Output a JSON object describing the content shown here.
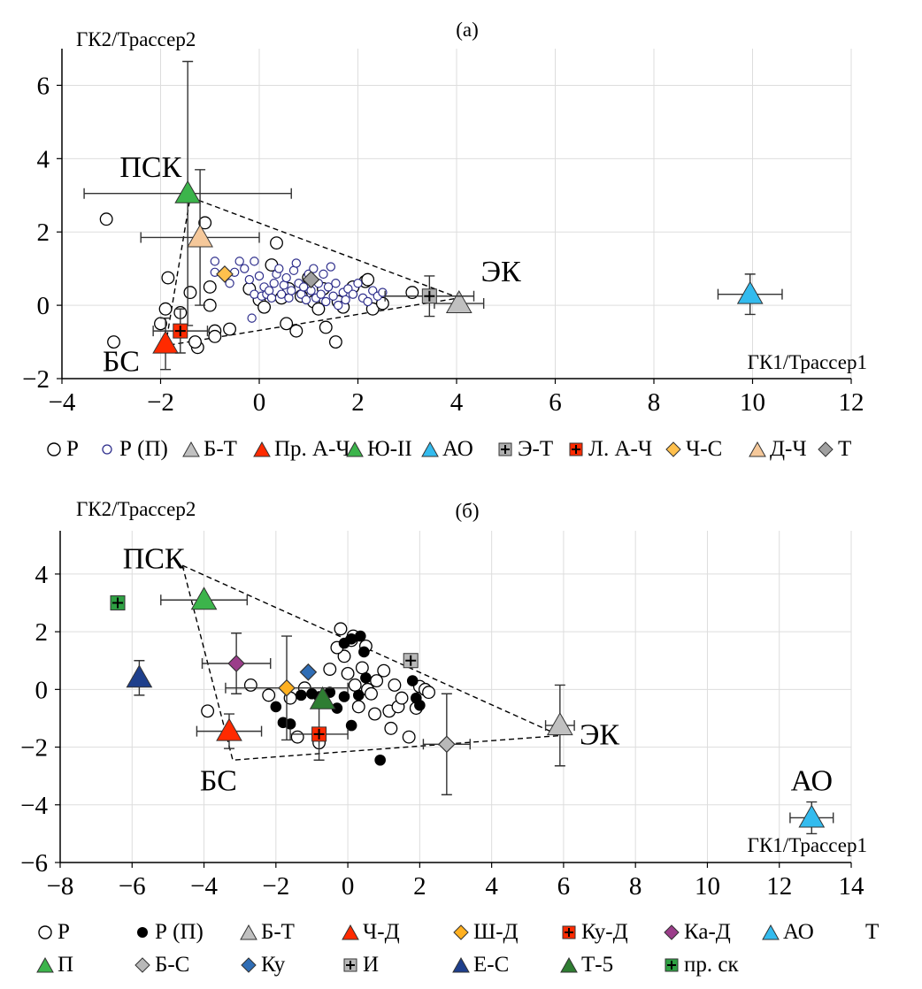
{
  "chart_data": [
    {
      "type": "scatter",
      "panel_label": "(a)",
      "xlabel": "ГК1/Трассер1",
      "ylabel": "ГК2/Трассер2",
      "xlim": [
        -4,
        12
      ],
      "ylim": [
        -2,
        7
      ],
      "x_ticks": [
        -4,
        -2,
        0,
        2,
        4,
        6,
        8,
        10,
        12
      ],
      "y_ticks": [
        -2,
        0,
        2,
        4,
        6
      ],
      "grid": true,
      "annotations": [
        {
          "text": "ПСК",
          "x": -2.2,
          "y": 3.5
        },
        {
          "text": "ЭК",
          "x": 4.9,
          "y": 0.65
        },
        {
          "text": "БС",
          "x": -2.8,
          "y": -1.8
        }
      ],
      "mixing_triangle": [
        [
          -1.4,
          2.95
        ],
        [
          4.05,
          0.2
        ],
        [
          -1.9,
          -1.1
        ]
      ],
      "series": [
        {
          "name": "Р",
          "marker": "circle-open",
          "color": "#000000",
          "points": [
            [
              -3.1,
              2.35
            ],
            [
              -1.85,
              0.75
            ],
            [
              -1.4,
              0.35
            ],
            [
              -1.1,
              2.25
            ],
            [
              -1.0,
              0.5
            ],
            [
              -1.0,
              0.0
            ],
            [
              -0.9,
              -0.7
            ],
            [
              -0.9,
              -0.85
            ],
            [
              -1.25,
              -1.15
            ],
            [
              -1.3,
              -1.0
            ],
            [
              -1.6,
              -0.2
            ],
            [
              -1.9,
              -0.1
            ],
            [
              -2.0,
              -0.5
            ],
            [
              -2.95,
              -1.0
            ],
            [
              -0.6,
              -0.65
            ],
            [
              -0.2,
              0.45
            ],
            [
              0.0,
              0.15
            ],
            [
              0.1,
              -0.05
            ],
            [
              0.25,
              1.1
            ],
            [
              0.35,
              1.7
            ],
            [
              0.45,
              0.2
            ],
            [
              0.55,
              -0.5
            ],
            [
              0.6,
              0.45
            ],
            [
              0.75,
              -0.7
            ],
            [
              0.85,
              0.25
            ],
            [
              1.0,
              0.75
            ],
            [
              1.1,
              0.1
            ],
            [
              1.2,
              -0.1
            ],
            [
              1.3,
              0.45
            ],
            [
              1.35,
              -0.6
            ],
            [
              1.55,
              -1.0
            ],
            [
              1.6,
              0.1
            ],
            [
              1.7,
              -0.05
            ],
            [
              1.9,
              0.5
            ],
            [
              2.15,
              0.65
            ],
            [
              2.2,
              0.7
            ],
            [
              2.3,
              -0.1
            ],
            [
              2.5,
              0.05
            ],
            [
              3.1,
              0.35
            ]
          ]
        },
        {
          "name": "Р (П)",
          "marker": "circle-open-small",
          "color": "#2e2e8c",
          "points": [
            [
              -0.9,
              1.2
            ],
            [
              -0.9,
              0.9
            ],
            [
              -0.6,
              0.6
            ],
            [
              -0.5,
              0.9
            ],
            [
              -0.4,
              1.2
            ],
            [
              -0.3,
              1.0
            ],
            [
              -0.2,
              0.7
            ],
            [
              -0.1,
              1.2
            ],
            [
              -0.1,
              0.3
            ],
            [
              0.0,
              0.8
            ],
            [
              0.05,
              0.25
            ],
            [
              0.1,
              0.5
            ],
            [
              0.15,
              0.3
            ],
            [
              0.2,
              0.4
            ],
            [
              0.25,
              0.2
            ],
            [
              0.3,
              0.6
            ],
            [
              0.35,
              0.85
            ],
            [
              0.4,
              1.0
            ],
            [
              0.45,
              0.3
            ],
            [
              0.5,
              0.55
            ],
            [
              0.55,
              0.75
            ],
            [
              0.6,
              0.2
            ],
            [
              0.65,
              0.4
            ],
            [
              0.7,
              0.95
            ],
            [
              0.75,
              1.15
            ],
            [
              0.8,
              0.6
            ],
            [
              0.85,
              0.3
            ],
            [
              0.9,
              0.5
            ],
            [
              0.95,
              0.15
            ],
            [
              1.0,
              0.85
            ],
            [
              1.05,
              0.4
            ],
            [
              1.1,
              1.0
            ],
            [
              1.15,
              0.2
            ],
            [
              1.2,
              0.6
            ],
            [
              1.25,
              0.3
            ],
            [
              1.3,
              0.85
            ],
            [
              1.35,
              0.1
            ],
            [
              1.4,
              0.5
            ],
            [
              1.45,
              1.05
            ],
            [
              1.5,
              0.25
            ],
            [
              1.55,
              0.6
            ],
            [
              1.6,
              0.0
            ],
            [
              1.7,
              0.35
            ],
            [
              1.75,
              0.15
            ],
            [
              1.8,
              0.45
            ],
            [
              1.9,
              0.3
            ],
            [
              2.0,
              0.6
            ],
            [
              2.1,
              0.2
            ],
            [
              2.2,
              0.1
            ],
            [
              2.3,
              0.4
            ],
            [
              2.4,
              0.25
            ],
            [
              2.5,
              0.35
            ],
            [
              -0.15,
              -0.35
            ]
          ]
        },
        {
          "name": "Б-Т",
          "marker": "triangle",
          "color": "#c0c0c0",
          "points": [
            [
              4.05,
              0.05
            ]
          ],
          "xerr": 0.5,
          "yerr": 0
        },
        {
          "name": "Пр. А-Ч",
          "marker": "triangle",
          "color": "#ff2a00",
          "points": [
            [
              -1.9,
              -1.05
            ]
          ],
          "xerr": 0,
          "yerr": 0.7
        },
        {
          "name": "Ю-II",
          "marker": "triangle",
          "color": "#3cb44b",
          "points": [
            [
              -1.45,
              3.05
            ]
          ],
          "xerr": 2.1,
          "yerr": 3.6
        },
        {
          "name": "АО",
          "marker": "triangle",
          "color": "#33bbee",
          "points": [
            [
              9.95,
              0.3
            ]
          ],
          "xerr": 0.65,
          "yerr": 0.55
        },
        {
          "name": "Э-Т",
          "marker": "square-plus",
          "color": "#b0b0b0",
          "points": [
            [
              3.45,
              0.25
            ]
          ],
          "xerr": 0.9,
          "yerr": 0.55
        },
        {
          "name": "Л. А-Ч",
          "marker": "square-plus",
          "color": "#ff2a00",
          "points": [
            [
              -1.6,
              -0.7
            ]
          ],
          "xerr": 0.55,
          "yerr": 0.6
        },
        {
          "name": "Ч-С",
          "marker": "diamond",
          "color": "#ffc04d",
          "points": [
            [
              -0.7,
              0.85
            ]
          ],
          "xerr": 0,
          "yerr": 0
        },
        {
          "name": "Д-Ч",
          "marker": "triangle",
          "color": "#f5c89a",
          "points": [
            [
              -1.2,
              1.85
            ]
          ],
          "xerr": 1.2,
          "yerr": 1.85
        },
        {
          "name": "Т",
          "marker": "diamond",
          "color": "#a0a0a0",
          "points": [
            [
              1.05,
              0.7
            ]
          ],
          "xerr": 0,
          "yerr": 0
        }
      ]
    },
    {
      "type": "scatter",
      "panel_label": "(б)",
      "xlabel": "ГК1/Трассер1",
      "ylabel": "ГК2/Трассер2",
      "xlim": [
        -8,
        14
      ],
      "ylim": [
        -6,
        5.5
      ],
      "x_ticks": [
        -8,
        -6,
        -4,
        -2,
        0,
        2,
        4,
        6,
        8,
        10,
        12,
        14
      ],
      "y_ticks": [
        -6,
        -4,
        -2,
        0,
        2,
        4
      ],
      "grid": true,
      "annotations": [
        {
          "text": "ПСК",
          "x": -5.4,
          "y": 4.2
        },
        {
          "text": "ЭК",
          "x": 7.0,
          "y": -1.9
        },
        {
          "text": "БС",
          "x": -3.6,
          "y": -3.5
        },
        {
          "text": "АО",
          "x": 12.9,
          "y": -3.5
        }
      ],
      "mixing_triangle": [
        [
          -4.6,
          4.3
        ],
        [
          5.9,
          -1.6
        ],
        [
          -3.2,
          -2.45
        ]
      ],
      "series": [
        {
          "name": "Р",
          "marker": "circle-open",
          "color": "#000000",
          "points": [
            [
              -3.9,
              -0.75
            ],
            [
              -2.7,
              0.15
            ],
            [
              -2.2,
              -0.2
            ],
            [
              -1.6,
              -0.3
            ],
            [
              -1.4,
              -1.65
            ],
            [
              -1.2,
              0.05
            ],
            [
              -0.8,
              -1.85
            ],
            [
              -0.5,
              0.7
            ],
            [
              -0.2,
              2.1
            ],
            [
              0.0,
              0.55
            ],
            [
              0.1,
              1.7
            ],
            [
              0.15,
              1.85
            ],
            [
              0.2,
              0.15
            ],
            [
              -0.1,
              1.15
            ],
            [
              -0.3,
              1.45
            ],
            [
              0.3,
              -0.6
            ],
            [
              0.4,
              0.75
            ],
            [
              0.5,
              1.5
            ],
            [
              0.55,
              0.0
            ],
            [
              0.65,
              -0.15
            ],
            [
              0.75,
              -0.85
            ],
            [
              0.8,
              0.3
            ],
            [
              1.0,
              0.65
            ],
            [
              1.15,
              -0.75
            ],
            [
              1.2,
              -1.35
            ],
            [
              1.3,
              0.15
            ],
            [
              1.4,
              -0.6
            ],
            [
              1.5,
              -0.3
            ],
            [
              1.7,
              -1.65
            ],
            [
              1.9,
              -0.65
            ],
            [
              2.0,
              0.1
            ],
            [
              2.15,
              0.0
            ],
            [
              2.25,
              -0.1
            ]
          ]
        },
        {
          "name": "Р (П)",
          "marker": "circle-filled",
          "color": "#000000",
          "points": [
            [
              -2.0,
              -0.6
            ],
            [
              -1.8,
              -1.15
            ],
            [
              -1.6,
              -1.2
            ],
            [
              -1.3,
              -0.2
            ],
            [
              -1.0,
              -0.15
            ],
            [
              -0.8,
              -0.25
            ],
            [
              -0.5,
              -0.1
            ],
            [
              -0.3,
              -0.65
            ],
            [
              -0.1,
              1.6
            ],
            [
              0.1,
              1.75
            ],
            [
              0.35,
              1.85
            ],
            [
              0.45,
              1.3
            ],
            [
              0.5,
              0.4
            ],
            [
              0.3,
              -0.2
            ],
            [
              0.1,
              -1.25
            ],
            [
              -0.1,
              -0.25
            ],
            [
              0.9,
              -2.45
            ],
            [
              1.8,
              0.3
            ],
            [
              1.9,
              -0.3
            ],
            [
              2.0,
              -0.55
            ]
          ]
        },
        {
          "name": "Б-Т",
          "marker": "triangle",
          "color": "#c0c0c0",
          "points": [
            [
              5.9,
              -1.25
            ]
          ],
          "xerr": 0.4,
          "yerr": 1.4
        },
        {
          "name": "Ч-Д",
          "marker": "triangle",
          "color": "#ff2a00",
          "points": [
            [
              -3.3,
              -1.45
            ]
          ],
          "xerr": 0.9,
          "yerr": 0.6
        },
        {
          "name": "Ш-Д",
          "marker": "diamond",
          "color": "#ffb020",
          "points": [
            [
              -1.7,
              0.05
            ]
          ],
          "xerr": 1.7,
          "yerr": 1.8
        },
        {
          "name": "Ку-Д",
          "marker": "square-plus",
          "color": "#ff2a00",
          "points": [
            [
              -0.8,
              -1.55
            ]
          ],
          "xerr": 0.8,
          "yerr": 0.9
        },
        {
          "name": "Ка-Д",
          "marker": "diamond",
          "color": "#9b3d8a",
          "points": [
            [
              -3.1,
              0.9
            ]
          ],
          "xerr": 0.95,
          "yerr": 1.05
        },
        {
          "name": "АО",
          "marker": "triangle",
          "color": "#33bbee",
          "points": [
            [
              12.9,
              -4.45
            ]
          ],
          "xerr": 0.6,
          "yerr": 0.55
        },
        {
          "name": "Т",
          "marker": "none",
          "color": "#000000",
          "points": []
        },
        {
          "name": "П",
          "marker": "triangle",
          "color": "#3cb44b",
          "points": [
            [
              -4.0,
              3.1
            ]
          ],
          "xerr": 1.2,
          "yerr": 0
        },
        {
          "name": "Б-С",
          "marker": "diamond",
          "color": "#b8b8b8",
          "points": [
            [
              2.75,
              -1.9
            ]
          ],
          "xerr": 0.65,
          "yerr": 1.75
        },
        {
          "name": "Ку",
          "marker": "diamond",
          "color": "#2f6db5",
          "points": [
            [
              -1.1,
              0.6
            ]
          ],
          "xerr": 0,
          "yerr": 0
        },
        {
          "name": "И",
          "marker": "square-plus",
          "color": "#b8b8b8",
          "points": [
            [
              1.75,
              1.0
            ]
          ],
          "xerr": 0,
          "yerr": 0
        },
        {
          "name": "Е-С",
          "marker": "triangle",
          "color": "#1e3f8c",
          "points": [
            [
              -5.8,
              0.4
            ]
          ],
          "xerr": 0,
          "yerr": 0.6
        },
        {
          "name": "Т-5",
          "marker": "triangle",
          "color": "#2e7d32",
          "points": [
            [
              -0.7,
              -0.35
            ]
          ],
          "xerr": 0,
          "yerr": 0
        },
        {
          "name": "пр. ск",
          "marker": "square-plus",
          "color": "#2ea043",
          "points": [
            [
              -6.4,
              3.0
            ]
          ],
          "xerr": 0,
          "yerr": 0
        }
      ]
    }
  ]
}
